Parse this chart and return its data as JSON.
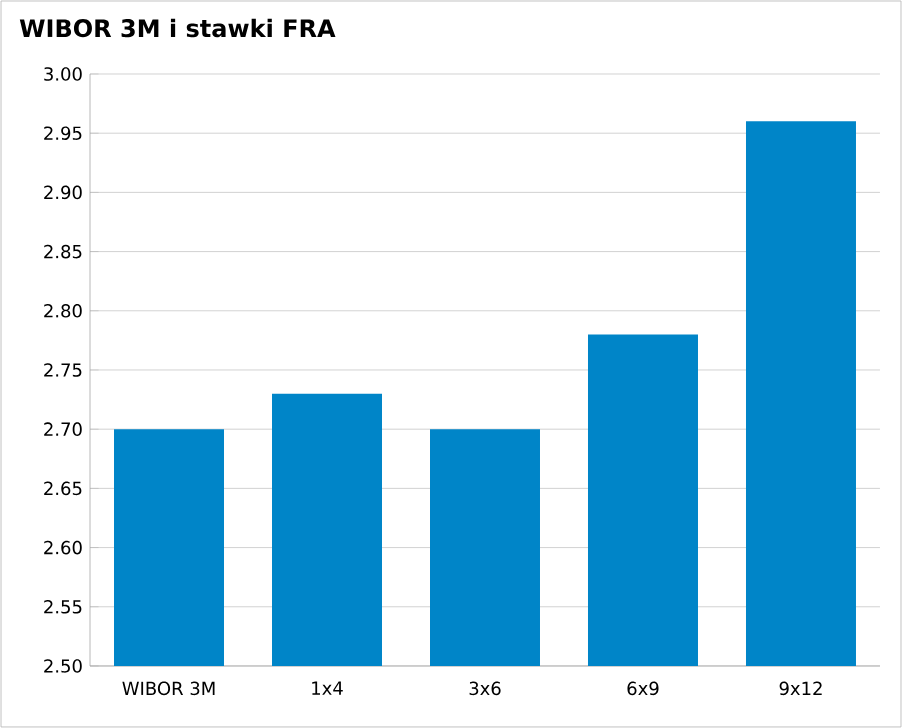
{
  "chart_data": {
    "type": "bar",
    "title": "WIBOR 3M i stawki FRA",
    "categories": [
      "WIBOR 3M",
      "1x4",
      "3x6",
      "6x9",
      "9x12"
    ],
    "values": [
      2.7,
      2.73,
      2.7,
      2.78,
      2.96
    ],
    "color": "#0085c8",
    "ylim": [
      2.5,
      3.0
    ],
    "yticks": [
      {
        "value": 2.5,
        "label": "2.50"
      },
      {
        "value": 2.55,
        "label": "2.55"
      },
      {
        "value": 2.6,
        "label": "2.60"
      },
      {
        "value": 2.65,
        "label": "2.65"
      },
      {
        "value": 2.7,
        "label": "2.70"
      },
      {
        "value": 2.75,
        "label": "2.75"
      },
      {
        "value": 2.8,
        "label": "2.80"
      },
      {
        "value": 2.85,
        "label": "2.85"
      },
      {
        "value": 2.9,
        "label": "2.90"
      },
      {
        "value": 2.95,
        "label": "2.95"
      },
      {
        "value": 3.0,
        "label": "3.00"
      }
    ],
    "grid": "y"
  }
}
